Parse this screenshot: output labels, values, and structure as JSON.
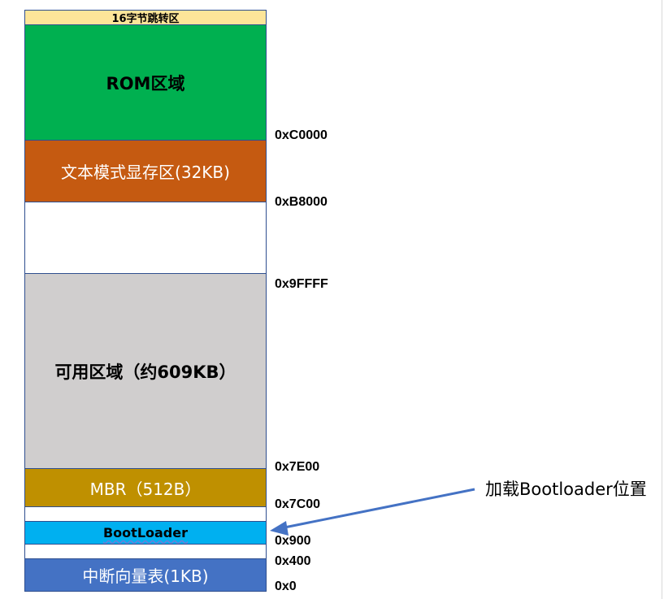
{
  "memory_map": {
    "segments": [
      {
        "key": "jump",
        "label": "16字节跳转区",
        "color": "#fde599"
      },
      {
        "key": "rom",
        "label": "ROM区域",
        "color": "#00b050"
      },
      {
        "key": "vram",
        "label": "文本模式显存区(32KB)",
        "color": "#c55a11"
      },
      {
        "key": "blank1",
        "label": "",
        "color": "#ffffff"
      },
      {
        "key": "available",
        "label": "可用区域（约609KB）",
        "color": "#d0cece"
      },
      {
        "key": "mbr",
        "label": "MBR（512B）",
        "color": "#bf9000"
      },
      {
        "key": "blank2",
        "label": "",
        "color": "#ffffff"
      },
      {
        "key": "bootloader",
        "label": "BootLoader",
        "color": "#00b0f0"
      },
      {
        "key": "blank3",
        "label": "",
        "color": "#ffffff"
      },
      {
        "key": "ivt",
        "label": "中断向量表(1KB)",
        "color": "#4472c4"
      }
    ],
    "addresses": [
      "0xC0000",
      "0xB8000",
      "0x9FFFF",
      "0x7E00",
      "0x7C00",
      "0x900",
      "0x400",
      "0x0"
    ]
  },
  "annotation": {
    "text": "加载Bootloader位置",
    "arrow_color": "#4472c4"
  }
}
